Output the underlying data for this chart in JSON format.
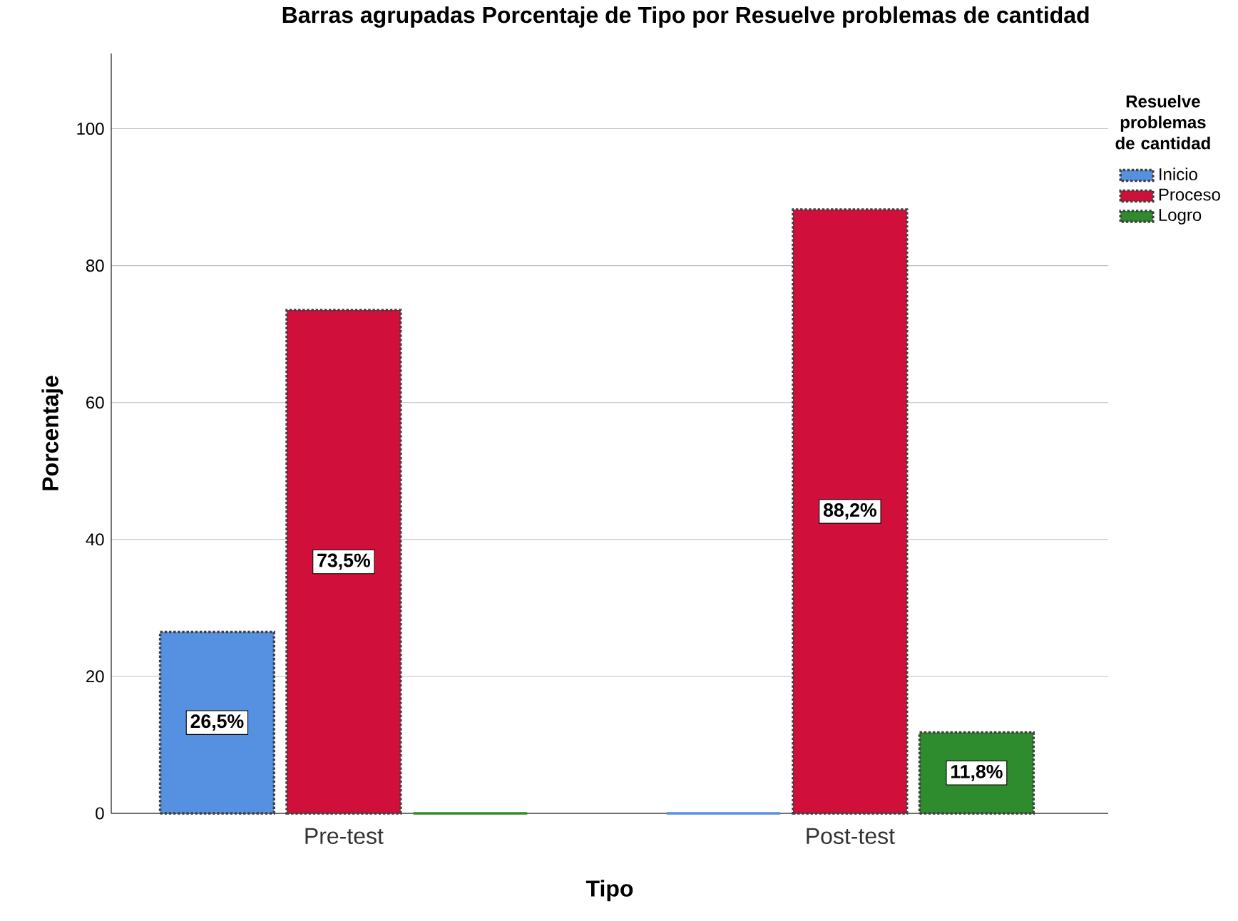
{
  "chart_data": {
    "type": "bar",
    "title": "Barras agrupadas Porcentaje de Tipo por Resuelve problemas de cantidad",
    "xlabel": "Tipo",
    "ylabel": "Porcentaje",
    "legend_title": "Resuelve problemas de cantidad",
    "categories": [
      "Pre-test",
      "Post-test"
    ],
    "series": [
      {
        "name": "Inicio",
        "color": "#5591e0",
        "values": [
          26.5,
          0
        ],
        "value_labels": [
          "26,5%",
          null
        ]
      },
      {
        "name": "Proceso",
        "color": "#d0103a",
        "values": [
          73.5,
          88.2
        ],
        "value_labels": [
          "73,5%",
          "88,2%"
        ]
      },
      {
        "name": "Logro",
        "color": "#2e8b2e",
        "values": [
          0,
          11.8
        ],
        "value_labels": [
          null,
          "11,8%"
        ]
      }
    ],
    "ylim": [
      0,
      111
    ],
    "yticks": [
      0,
      20,
      40,
      60,
      80,
      100
    ],
    "grid": "y",
    "legend": "right"
  }
}
